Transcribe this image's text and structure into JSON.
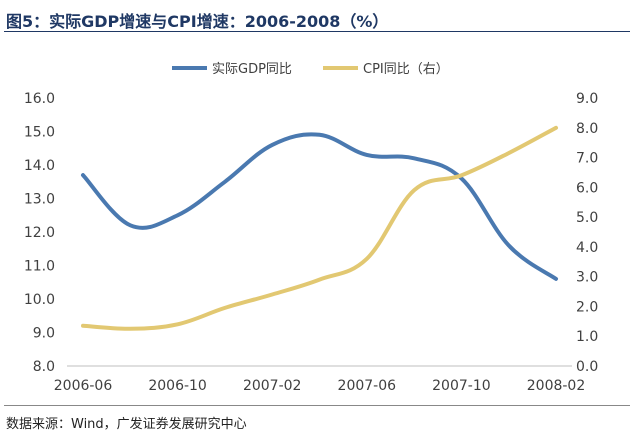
{
  "title": "图5：实际GDP增速与CPI增速：2006-2008（%）",
  "source": "数据来源：Wind，广发证券发展研究中心",
  "chart_data": {
    "type": "line",
    "categories": [
      "2006-06",
      "2006-10",
      "2007-02",
      "2007-06",
      "2007-10",
      "2008-02"
    ],
    "left_axis": {
      "min": 8.0,
      "max": 16.0,
      "step": 1.0,
      "ticks": [
        "8.0",
        "9.0",
        "10.0",
        "11.0",
        "12.0",
        "13.0",
        "14.0",
        "15.0",
        "16.0"
      ]
    },
    "right_axis": {
      "min": 0.0,
      "max": 9.0,
      "step": 1.0,
      "ticks": [
        "0.0",
        "1.0",
        "2.0",
        "3.0",
        "4.0",
        "5.0",
        "6.0",
        "7.0",
        "8.0",
        "9.0"
      ]
    },
    "series": [
      {
        "name": "实际GDP同比",
        "axis": "left",
        "color": "#4a79b0",
        "x": [
          0,
          0.5,
          1.0,
          1.5,
          2.0,
          2.5,
          3.0,
          3.5,
          4.0,
          4.5,
          5.0
        ],
        "values": [
          13.7,
          12.2,
          12.5,
          13.5,
          14.6,
          14.9,
          14.3,
          14.2,
          13.6,
          11.6,
          10.6
        ]
      },
      {
        "name": "CPI同比（右）",
        "axis": "right",
        "color": "#e2c872",
        "x": [
          0,
          0.5,
          1.0,
          1.5,
          2.0,
          2.5,
          3.0,
          3.5,
          4.0,
          4.5,
          5.0
        ],
        "values": [
          1.35,
          1.25,
          1.4,
          1.95,
          2.4,
          2.9,
          3.6,
          5.9,
          6.4,
          7.15,
          8.0
        ]
      }
    ],
    "legend": "top-center",
    "grid": false
  }
}
